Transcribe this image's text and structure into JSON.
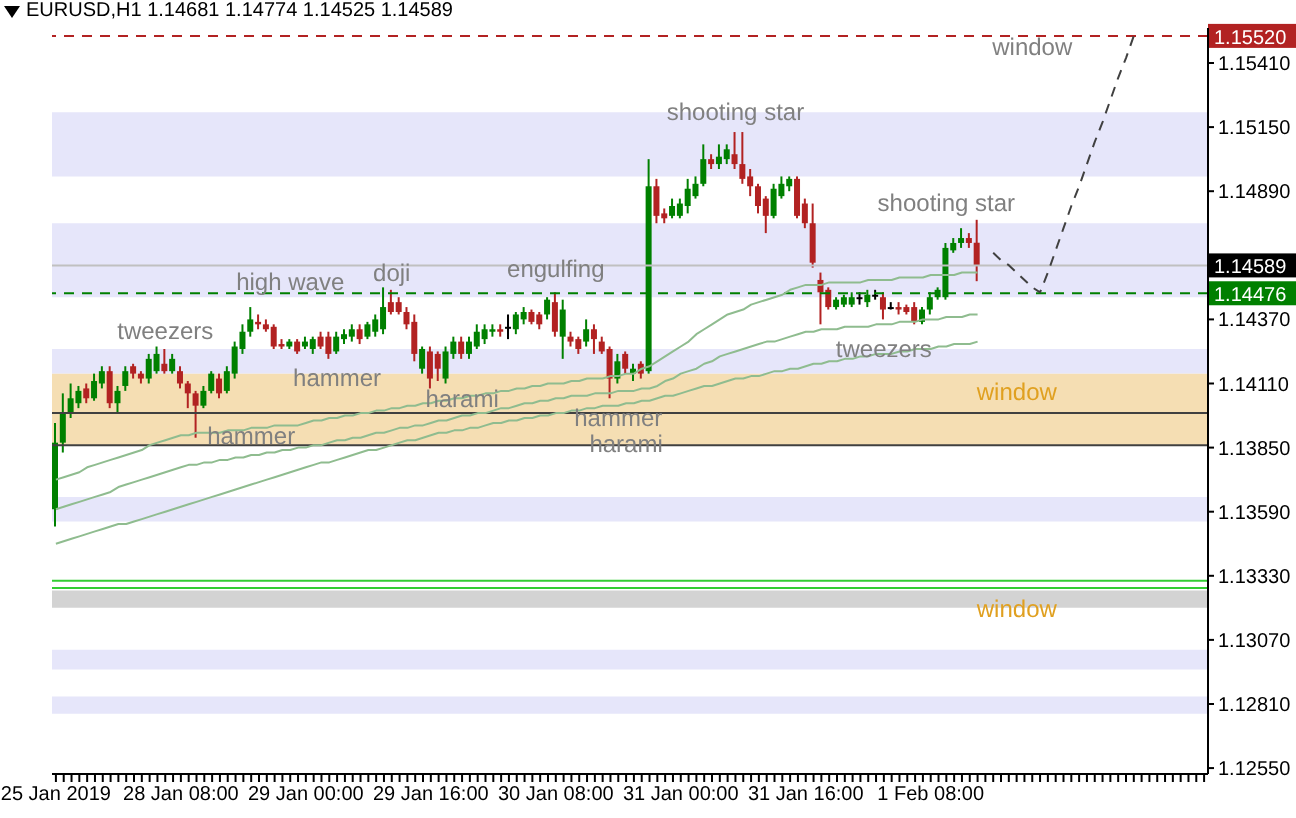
{
  "chart_data": {
    "type": "candlestick",
    "title": "EURUSD,H1  1.14681 1.14774 1.14525 1.14589",
    "categories": [
      "25 Jan 2019",
      null,
      null,
      null,
      null,
      null,
      null,
      null,
      null,
      null,
      null,
      null,
      null,
      null,
      null,
      null,
      "28 Jan 08:00",
      null,
      null,
      null,
      null,
      null,
      null,
      null,
      null,
      null,
      null,
      null,
      null,
      null,
      null,
      null,
      "29 Jan 00:00",
      null,
      null,
      null,
      null,
      null,
      null,
      null,
      null,
      null,
      null,
      null,
      null,
      null,
      null,
      null,
      "29 Jan 16:00",
      null,
      null,
      null,
      null,
      null,
      null,
      null,
      null,
      null,
      null,
      null,
      null,
      null,
      null,
      null,
      "30 Jan 08:00",
      null,
      null,
      null,
      null,
      null,
      null,
      null,
      null,
      null,
      null,
      null,
      null,
      null,
      null,
      null,
      "31 Jan 00:00",
      null,
      null,
      null,
      null,
      null,
      null,
      null,
      null,
      null,
      null,
      null,
      null,
      null,
      null,
      null,
      "31 Jan 16:00",
      null,
      null,
      null,
      null,
      null,
      null,
      null,
      null,
      null,
      null,
      null,
      null,
      null,
      null,
      null,
      "1 Feb 08:00",
      null,
      null,
      null,
      null,
      null,
      null,
      null,
      null,
      null,
      null,
      null,
      null,
      null,
      null,
      null,
      null,
      null,
      null,
      null,
      null,
      null,
      null,
      null,
      null,
      null,
      null,
      null,
      null,
      null,
      null,
      null,
      null,
      null,
      null,
      null
    ],
    "ylim": [
      1.12526,
      1.15552
    ],
    "yticks": [
      {
        "value": 1.1255,
        "label": "1.12550"
      },
      {
        "value": 1.1281,
        "label": "1.12810"
      },
      {
        "value": 1.1307,
        "label": "1.13070"
      },
      {
        "value": 1.1333,
        "label": "1.13330"
      },
      {
        "value": 1.1359,
        "label": "1.13590"
      },
      {
        "value": 1.1385,
        "label": "1.13850"
      },
      {
        "value": 1.1411,
        "label": "1.14110"
      },
      {
        "value": 1.1437,
        "label": "1.14370"
      },
      {
        "value": 1.1489,
        "label": "1.14890"
      },
      {
        "value": 1.1515,
        "label": "1.15150"
      },
      {
        "value": 1.1541,
        "label": "1.15410"
      }
    ],
    "marker": "none",
    "series": [
      {
        "ohlc": [
          [
            1.136,
            1.1395,
            1.1353,
            1.1387
          ],
          [
            1.1387,
            1.1407,
            1.1383,
            1.1399
          ],
          [
            1.1399,
            1.1411,
            1.1397,
            1.1405
          ],
          [
            1.1403,
            1.141,
            1.1401,
            1.1408
          ],
          [
            1.1409,
            1.1411,
            1.1403,
            1.1405
          ],
          [
            1.1405,
            1.1415,
            1.1404,
            1.1412
          ],
          [
            1.1411,
            1.1418,
            1.1409,
            1.1416
          ],
          [
            1.1416,
            1.1418,
            1.1401,
            1.1403
          ],
          [
            1.1403,
            1.141,
            1.1399,
            1.1408
          ],
          [
            1.141,
            1.1418,
            1.1408,
            1.1416
          ],
          [
            1.1418,
            1.1419,
            1.1413,
            1.1415
          ],
          [
            1.1415,
            1.1416,
            1.1411,
            1.1413
          ],
          [
            1.1413,
            1.1423,
            1.1411,
            1.1421
          ],
          [
            1.1416,
            1.1426,
            1.1415,
            1.1423
          ],
          [
            1.1419,
            1.1425,
            1.1415,
            1.1416
          ],
          [
            1.1416,
            1.1423,
            1.1415,
            1.1421
          ],
          [
            1.1416,
            1.1418,
            1.1409,
            1.1411
          ],
          [
            1.1411,
            1.1412,
            1.1401,
            1.1407
          ],
          [
            1.1407,
            1.1408,
            1.1389,
            1.1402
          ],
          [
            1.1402,
            1.141,
            1.1401,
            1.1408
          ],
          [
            1.1408,
            1.1416,
            1.1407,
            1.1415
          ],
          [
            1.1413,
            1.1415,
            1.1405,
            1.1407
          ],
          [
            1.1408,
            1.1418,
            1.1407,
            1.1416
          ],
          [
            1.1415,
            1.1428,
            1.1413,
            1.1426
          ],
          [
            1.1425,
            1.1435,
            1.1423,
            1.1432
          ],
          [
            1.1432,
            1.1442,
            1.143,
            1.1437
          ],
          [
            1.1436,
            1.1439,
            1.1433,
            1.1435
          ],
          [
            1.1435,
            1.1437,
            1.1432,
            1.1433
          ],
          [
            1.1434,
            1.1435,
            1.1425,
            1.1426
          ],
          [
            1.1427,
            1.1429,
            1.1425,
            1.1426
          ],
          [
            1.1426,
            1.1429,
            1.1425,
            1.1428
          ],
          [
            1.1428,
            1.1429,
            1.1423,
            1.1424
          ],
          [
            1.1426,
            1.143,
            1.1425,
            1.1428
          ],
          [
            1.1425,
            1.143,
            1.1423,
            1.1429
          ],
          [
            1.143,
            1.1432,
            1.1425,
            1.1426
          ],
          [
            1.143,
            1.1432,
            1.1421,
            1.1423
          ],
          [
            1.1424,
            1.1432,
            1.1423,
            1.143
          ],
          [
            1.1429,
            1.1433,
            1.1427,
            1.1431
          ],
          [
            1.143,
            1.1435,
            1.1428,
            1.1433
          ],
          [
            1.1433,
            1.1435,
            1.1427,
            1.1429
          ],
          [
            1.143,
            1.1436,
            1.1429,
            1.1435
          ],
          [
            1.1432,
            1.1439,
            1.143,
            1.1437
          ],
          [
            1.1433,
            1.145,
            1.1431,
            1.1442
          ],
          [
            1.1444,
            1.1449,
            1.1439,
            1.144
          ],
          [
            1.1444,
            1.1446,
            1.1439,
            1.144
          ],
          [
            1.144,
            1.1442,
            1.1433,
            1.1435
          ],
          [
            1.1436,
            1.1439,
            1.142,
            1.1423
          ],
          [
            1.1417,
            1.1426,
            1.1415,
            1.1425
          ],
          [
            1.1424,
            1.1426,
            1.1409,
            1.1413
          ],
          [
            1.1423,
            1.1424,
            1.1412,
            1.1417
          ],
          [
            1.1413,
            1.1426,
            1.1411,
            1.1424
          ],
          [
            1.1423,
            1.143,
            1.1421,
            1.1428
          ],
          [
            1.1428,
            1.143,
            1.1421,
            1.1423
          ],
          [
            1.1423,
            1.143,
            1.1421,
            1.1428
          ],
          [
            1.1426,
            1.1435,
            1.1425,
            1.1432
          ],
          [
            1.1429,
            1.1435,
            1.1427,
            1.1433
          ],
          [
            1.1432,
            1.1435,
            1.143,
            1.1433
          ],
          [
            1.1433,
            1.1435,
            1.143,
            1.1432
          ],
          [
            1.1434,
            1.1439,
            1.1429,
            1.1434
          ],
          [
            1.1433,
            1.144,
            1.1431,
            1.1439
          ],
          [
            1.1437,
            1.1442,
            1.1435,
            1.144
          ],
          [
            1.144,
            1.1441,
            1.1435,
            1.1436
          ],
          [
            1.1439,
            1.144,
            1.1433,
            1.1435
          ],
          [
            1.1439,
            1.1446,
            1.1437,
            1.1445
          ],
          [
            1.1444,
            1.1448,
            1.143,
            1.1432
          ],
          [
            1.143,
            1.1445,
            1.1421,
            1.1441
          ],
          [
            1.143,
            1.1432,
            1.1426,
            1.1428
          ],
          [
            1.1429,
            1.143,
            1.1423,
            1.1425
          ],
          [
            1.1428,
            1.1437,
            1.1426,
            1.1433
          ],
          [
            1.1433,
            1.1435,
            1.1423,
            1.1429
          ],
          [
            1.1428,
            1.143,
            1.1423,
            1.1424
          ],
          [
            1.1425,
            1.1426,
            1.1405,
            1.1413
          ],
          [
            1.1413,
            1.1423,
            1.1411,
            1.142
          ],
          [
            1.1423,
            1.1424,
            1.1415,
            1.1417
          ],
          [
            1.1415,
            1.1419,
            1.1412,
            1.1417
          ],
          [
            1.1419,
            1.142,
            1.1413,
            1.1415
          ],
          [
            1.1416,
            1.1502,
            1.1415,
            1.1491
          ],
          [
            1.1491,
            1.1494,
            1.1476,
            1.1479
          ],
          [
            1.148,
            1.1482,
            1.1476,
            1.1478
          ],
          [
            1.1479,
            1.1486,
            1.1478,
            1.1483
          ],
          [
            1.1479,
            1.1486,
            1.1478,
            1.1484
          ],
          [
            1.1483,
            1.1494,
            1.148,
            1.149
          ],
          [
            1.1487,
            1.1495,
            1.1486,
            1.1492
          ],
          [
            1.1492,
            1.1508,
            1.1491,
            1.1502
          ],
          [
            1.1502,
            1.1504,
            1.1498,
            1.15
          ],
          [
            1.15,
            1.1508,
            1.1498,
            1.1503
          ],
          [
            1.1502,
            1.1508,
            1.15,
            1.1506
          ],
          [
            1.1504,
            1.1513,
            1.1498,
            1.15
          ],
          [
            1.15,
            1.1513,
            1.1492,
            1.1494
          ],
          [
            1.1495,
            1.1498,
            1.1487,
            1.1491
          ],
          [
            1.1491,
            1.1492,
            1.148,
            1.1483
          ],
          [
            1.1486,
            1.1487,
            1.1472,
            1.1479
          ],
          [
            1.1479,
            1.1492,
            1.1478,
            1.149
          ],
          [
            1.1487,
            1.1495,
            1.1486,
            1.1492
          ],
          [
            1.1491,
            1.1495,
            1.1489,
            1.1494
          ],
          [
            1.1494,
            1.1495,
            1.1478,
            1.1479
          ],
          [
            1.1484,
            1.1486,
            1.1474,
            1.1476
          ],
          [
            1.1476,
            1.1484,
            1.1458,
            1.146
          ],
          [
            1.1453,
            1.1456,
            1.1435,
            1.1448
          ],
          [
            1.1449,
            1.145,
            1.1441,
            1.1442
          ],
          [
            1.1442,
            1.1446,
            1.1441,
            1.1445
          ],
          [
            1.1443,
            1.1447,
            1.1442,
            1.1446
          ],
          [
            1.1443,
            1.1448,
            1.1442,
            1.1446
          ],
          [
            1.1446,
            1.1448,
            1.1443,
            1.1446
          ],
          [
            1.1444,
            1.1449,
            1.1442,
            1.1447
          ],
          [
            1.1447,
            1.1449,
            1.1445,
            1.1447
          ],
          [
            1.1446,
            1.1448,
            1.1437,
            1.1441
          ],
          [
            1.1442,
            1.1444,
            1.1441,
            1.1442
          ],
          [
            1.1442,
            1.1444,
            1.1439,
            1.1441
          ],
          [
            1.1442,
            1.1443,
            1.1439,
            1.144
          ],
          [
            1.1442,
            1.1444,
            1.1435,
            1.1436
          ],
          [
            1.1436,
            1.1442,
            1.1435,
            1.1441
          ],
          [
            1.1441,
            1.1448,
            1.1439,
            1.1446
          ],
          [
            1.1446,
            1.145,
            1.1445,
            1.1449
          ],
          [
            1.1446,
            1.1468,
            1.1445,
            1.1466
          ],
          [
            1.1465,
            1.147,
            1.1464,
            1.1468
          ],
          [
            1.1468,
            1.1474,
            1.1466,
            1.147
          ],
          [
            1.147,
            1.1472,
            1.1466,
            1.1468
          ],
          [
            1.14681,
            1.14774,
            1.14525,
            1.14589
          ],
          null,
          null,
          null,
          null,
          null,
          null,
          null,
          null,
          null,
          null,
          null,
          null,
          null,
          null,
          null,
          null,
          null,
          null,
          null,
          null,
          null,
          null,
          null,
          null,
          null,
          null,
          null,
          null,
          null
        ],
        "colors": [
          "#008000",
          "#008000",
          "#008000",
          "#008000",
          "#b22222",
          "#008000",
          "#008000",
          "#b22222",
          "#008000",
          "#008000",
          "#b22222",
          "#b22222",
          "#008000",
          "#008000",
          "#b22222",
          "#008000",
          "#b22222",
          "#b22222",
          "#b22222",
          "#008000",
          "#008000",
          "#b22222",
          "#008000",
          "#008000",
          "#008000",
          "#008000",
          "#b22222",
          "#b22222",
          "#b22222",
          "#b22222",
          "#008000",
          "#b22222",
          "#008000",
          "#008000",
          "#b22222",
          "#b22222",
          "#008000",
          "#008000",
          "#008000",
          "#b22222",
          "#008000",
          "#008000",
          "#008000",
          "#b22222",
          "#b22222",
          "#b22222",
          "#b22222",
          "#008000",
          "#b22222",
          "#b22222",
          "#008000",
          "#008000",
          "#b22222",
          "#008000",
          "#008000",
          "#008000",
          "#008000",
          "#b22222",
          "#000000",
          "#008000",
          "#008000",
          "#b22222",
          "#b22222",
          "#008000",
          "#b22222",
          "#008000",
          "#b22222",
          "#b22222",
          "#008000",
          "#b22222",
          "#b22222",
          "#b22222",
          "#008000",
          "#b22222",
          "#008000",
          "#b22222",
          "#008000",
          "#b22222",
          "#b22222",
          "#008000",
          "#008000",
          "#008000",
          "#008000",
          "#008000",
          "#b22222",
          "#008000",
          "#008000",
          "#b22222",
          "#b22222",
          "#b22222",
          "#b22222",
          "#b22222",
          "#008000",
          "#008000",
          "#008000",
          "#b22222",
          "#b22222",
          "#b22222",
          "#b22222",
          "#b22222",
          "#008000",
          "#008000",
          "#008000",
          "#000000",
          "#008000",
          "#000000",
          "#b22222",
          "#000000",
          "#b22222",
          "#b22222",
          "#b22222",
          "#008000",
          "#008000",
          "#008000",
          "#008000",
          "#008000",
          "#008000",
          "#b22222",
          "#b22222",
          null,
          null,
          null,
          null,
          null,
          null,
          null,
          null,
          null,
          null,
          null,
          null,
          null,
          null,
          null,
          null,
          null,
          null,
          null,
          null,
          null,
          null,
          null,
          null,
          null,
          null,
          null,
          null,
          null
        ]
      },
      {
        "type": "line",
        "color": "#8fbc8f",
        "values": [
          1.1372,
          1.1373,
          1.1374,
          1.1375,
          1.1377,
          1.1378,
          1.1379,
          1.138,
          1.1381,
          1.1382,
          1.1383,
          1.1384,
          1.1386,
          1.1387,
          1.1388,
          1.1389,
          1.139,
          1.139,
          1.1391,
          1.1391,
          1.1391,
          1.1391,
          1.1392,
          1.1392,
          1.1392,
          1.1393,
          1.1393,
          1.1393,
          1.1394,
          1.1394,
          1.1394,
          1.1394,
          1.1395,
          1.1396,
          1.1396,
          1.1397,
          1.1397,
          1.1398,
          1.1398,
          1.1399,
          1.1399,
          1.14,
          1.14,
          1.1401,
          1.1401,
          1.1402,
          1.1402,
          1.1403,
          1.1403,
          1.1404,
          1.1404,
          1.1405,
          1.1405,
          1.1406,
          1.1406,
          1.1407,
          1.1407,
          1.1408,
          1.1408,
          1.1409,
          1.1409,
          1.141,
          1.141,
          1.1411,
          1.1411,
          1.1411,
          1.1412,
          1.1412,
          1.1413,
          1.1413,
          1.1413,
          1.1414,
          1.1414,
          1.1415,
          1.1415,
          1.1417,
          1.1418,
          1.142,
          1.1422,
          1.1424,
          1.1426,
          1.1428,
          1.1431,
          1.1433,
          1.1435,
          1.1437,
          1.1439,
          1.144,
          1.1441,
          1.1443,
          1.1444,
          1.1445,
          1.1446,
          1.1447,
          1.1449,
          1.145,
          1.1451,
          1.1451,
          1.1451,
          1.1452,
          1.1452,
          1.1452,
          1.1452,
          1.1452,
          1.1453,
          1.1453,
          1.1453,
          1.1453,
          1.1454,
          1.1454,
          1.1454,
          1.1454,
          1.1455,
          1.1455,
          1.1455,
          1.1455,
          1.1456,
          1.1456,
          1.1456,
          null,
          null,
          null,
          null,
          null,
          null,
          null,
          null,
          null,
          null,
          null,
          null,
          null,
          null,
          null,
          null,
          null,
          null,
          null,
          null,
          null,
          null,
          null,
          null,
          null,
          null,
          null,
          null,
          null
        ]
      },
      {
        "type": "line",
        "color": "#8fbc8f",
        "values": [
          1.136,
          1.1361,
          1.1362,
          1.1363,
          1.1364,
          1.1365,
          1.1366,
          1.1367,
          1.1369,
          1.137,
          1.1371,
          1.1372,
          1.1373,
          1.1374,
          1.1375,
          1.1376,
          1.1377,
          1.1378,
          1.1378,
          1.1379,
          1.1379,
          1.138,
          1.138,
          1.1381,
          1.1381,
          1.1382,
          1.1382,
          1.1383,
          1.1383,
          1.1384,
          1.1384,
          1.1385,
          1.1385,
          1.1386,
          1.1386,
          1.1387,
          1.1388,
          1.1388,
          1.1389,
          1.1389,
          1.139,
          1.1391,
          1.1391,
          1.1392,
          1.1393,
          1.1393,
          1.1394,
          1.1394,
          1.1395,
          1.1396,
          1.1396,
          1.1397,
          1.1398,
          1.1398,
          1.1399,
          1.1399,
          1.14,
          1.1401,
          1.1401,
          1.1402,
          1.1403,
          1.1403,
          1.1404,
          1.1404,
          1.1405,
          1.1405,
          1.1406,
          1.1406,
          1.1406,
          1.1407,
          1.1407,
          1.1407,
          1.1408,
          1.1408,
          1.1408,
          1.1409,
          1.1409,
          1.141,
          1.1412,
          1.1413,
          1.1415,
          1.1416,
          1.1417,
          1.1419,
          1.142,
          1.1422,
          1.1423,
          1.1424,
          1.1425,
          1.1426,
          1.1427,
          1.1428,
          1.1428,
          1.1429,
          1.143,
          1.1431,
          1.1432,
          1.1432,
          1.1433,
          1.1433,
          1.1433,
          1.1434,
          1.1434,
          1.1434,
          1.1434,
          1.1435,
          1.1435,
          1.1435,
          1.1436,
          1.1436,
          1.1436,
          1.1437,
          1.1437,
          1.1437,
          1.1438,
          1.1438,
          1.1438,
          1.1439,
          1.1439,
          null,
          null,
          null,
          null,
          null,
          null,
          null,
          null,
          null,
          null,
          null,
          null,
          null,
          null,
          null,
          null,
          null,
          null,
          null,
          null,
          null,
          null,
          null,
          null,
          null,
          null,
          null,
          null,
          null
        ]
      },
      {
        "type": "line",
        "color": "#8fbc8f",
        "values": [
          1.1346,
          1.1347,
          1.1348,
          1.1349,
          1.135,
          1.1351,
          1.1352,
          1.1353,
          1.1354,
          1.1354,
          1.1355,
          1.1356,
          1.1357,
          1.1358,
          1.1359,
          1.136,
          1.1361,
          1.1362,
          1.1363,
          1.1364,
          1.1365,
          1.1366,
          1.1367,
          1.1368,
          1.1369,
          1.137,
          1.1371,
          1.1372,
          1.1373,
          1.1374,
          1.1375,
          1.1376,
          1.1377,
          1.1378,
          1.1379,
          1.1379,
          1.138,
          1.1381,
          1.1382,
          1.1383,
          1.1384,
          1.1384,
          1.1385,
          1.1386,
          1.1387,
          1.1388,
          1.1388,
          1.1389,
          1.139,
          1.1391,
          1.1391,
          1.1392,
          1.1392,
          1.1393,
          1.1393,
          1.1394,
          1.1395,
          1.1395,
          1.1396,
          1.1396,
          1.1397,
          1.1397,
          1.1398,
          1.1398,
          1.1399,
          1.1399,
          1.14,
          1.14,
          1.1401,
          1.1401,
          1.1402,
          1.1402,
          1.1402,
          1.1403,
          1.1403,
          1.1404,
          1.1404,
          1.1405,
          1.1406,
          1.1406,
          1.1407,
          1.1408,
          1.1409,
          1.141,
          1.141,
          1.1411,
          1.1412,
          1.1413,
          1.1413,
          1.1414,
          1.1414,
          1.1415,
          1.1416,
          1.1416,
          1.1417,
          1.1417,
          1.1418,
          1.1419,
          1.1419,
          1.142,
          1.142,
          1.1421,
          1.1421,
          1.1422,
          1.1422,
          1.1423,
          1.1423,
          1.1423,
          1.1424,
          1.1424,
          1.1425,
          1.1425,
          1.1425,
          1.1426,
          1.1426,
          1.1427,
          1.1427,
          1.1427,
          1.1428,
          null,
          null,
          null,
          null,
          null,
          null,
          null,
          null,
          null,
          null,
          null,
          null,
          null,
          null,
          null,
          null,
          null,
          null,
          null,
          null,
          null,
          null,
          null,
          null,
          null,
          null,
          null,
          null,
          null
        ]
      },
      {
        "type": "line",
        "color": "#404040",
        "line_style": "dashed",
        "values": [
          null,
          null,
          null,
          null,
          null,
          null,
          null,
          null,
          null,
          null,
          null,
          null,
          null,
          null,
          null,
          null,
          null,
          null,
          null,
          null,
          null,
          null,
          null,
          null,
          null,
          null,
          null,
          null,
          null,
          null,
          null,
          null,
          null,
          null,
          null,
          null,
          null,
          null,
          null,
          null,
          null,
          null,
          null,
          null,
          null,
          null,
          null,
          null,
          null,
          null,
          null,
          null,
          null,
          null,
          null,
          null,
          null,
          null,
          null,
          null,
          null,
          null,
          null,
          null,
          null,
          null,
          null,
          null,
          null,
          null,
          null,
          null,
          null,
          null,
          null,
          null,
          null,
          null,
          null,
          null,
          null,
          null,
          null,
          null,
          null,
          null,
          null,
          null,
          null,
          null,
          null,
          null,
          null,
          null,
          null,
          null,
          null,
          null,
          null,
          null,
          null,
          null,
          null,
          null,
          null,
          null,
          null,
          null,
          null,
          null,
          null,
          null,
          null,
          null,
          null,
          null,
          null,
          null,
          null,
          null,
          1.1464,
          1.1461,
          1.1459,
          1.1456,
          1.1453,
          1.145,
          1.1448,
          1.1456,
          1.1465,
          1.1474,
          1.1483,
          1.1491,
          1.15,
          1.1509,
          1.1517,
          1.1526,
          1.1535,
          1.1543,
          1.1552,
          null,
          null,
          null,
          null,
          null,
          null,
          null,
          null,
          null
        ]
      }
    ],
    "bands": [
      {
        "axis": "y",
        "from": 1.1495,
        "to": 1.1521,
        "color": "#e6e6fa"
      },
      {
        "axis": "y",
        "from": 1.1446,
        "to": 1.1476,
        "color": "#e6e6fa"
      },
      {
        "axis": "y",
        "from": 1.1415,
        "to": 1.1425,
        "color": "#e6e6fa"
      },
      {
        "axis": "y",
        "from": 1.1386,
        "to": 1.1415,
        "color": "#f5deb3",
        "label": "window"
      },
      {
        "axis": "y",
        "from": 1.1355,
        "to": 1.1365,
        "color": "#e6e6fa"
      },
      {
        "axis": "y",
        "from": 1.132,
        "to": 1.1327,
        "color": "#d3d3d3",
        "label": "window"
      },
      {
        "axis": "y",
        "from": 1.1295,
        "to": 1.1303,
        "color": "#e6e6fa"
      },
      {
        "axis": "y",
        "from": 1.1277,
        "to": 1.1284,
        "color": "#e6e6fa"
      }
    ],
    "ref_lines": [
      {
        "axis": "y",
        "value": 1.1552,
        "label": "1.15520",
        "color": "#b22222",
        "line_style": "dashed"
      },
      {
        "axis": "y",
        "value": 1.14589,
        "label": "1.14589",
        "color": "#c0c0c0",
        "line_style": "solid"
      },
      {
        "axis": "y",
        "value": 1.14476,
        "label": "1.14476",
        "color": "#008000",
        "line_style": "dashed"
      },
      {
        "axis": "y",
        "value": 1.1399,
        "color": "#404040",
        "line_style": "solid"
      },
      {
        "axis": "y",
        "value": 1.1386,
        "color": "#404040",
        "line_style": "solid"
      },
      {
        "axis": "y",
        "value": 1.1331,
        "color": "#32cd32",
        "line_style": "solid"
      },
      {
        "axis": "y",
        "value": 1.1328,
        "color": "#32cd32",
        "line_style": "solid"
      }
    ],
    "annotations": [
      "shooting star",
      "shooting star",
      "high wave",
      "doji",
      "engulfing",
      "tweezers",
      "hammer",
      "harami",
      "hammer",
      "hammer",
      "harami",
      "tweezers",
      "window"
    ],
    "grid": false,
    "legend": false
  }
}
